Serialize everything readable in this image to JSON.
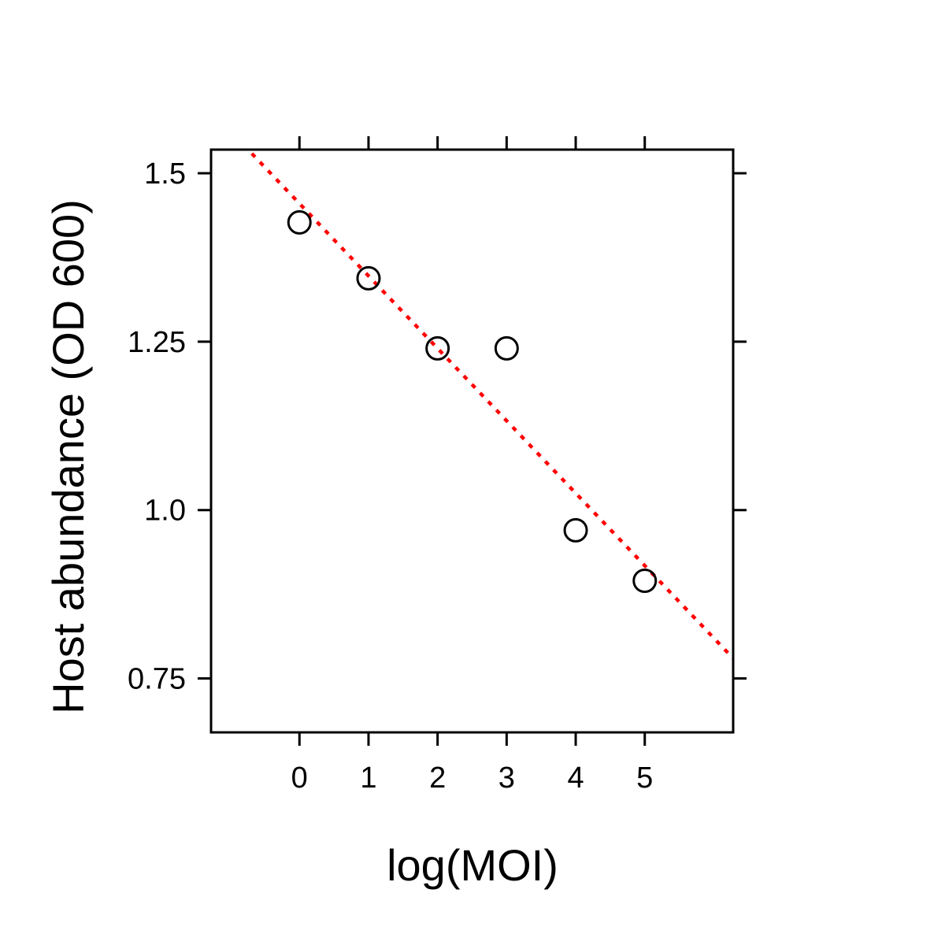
{
  "chart_data": {
    "type": "scatter",
    "xlabel": "log(MOI)",
    "ylabel": "Host abundance (OD 600)",
    "xlim": [
      -1.28,
      6.28
    ],
    "ylim": [
      0.67,
      1.535
    ],
    "x_ticks": [
      0,
      1,
      2,
      3,
      4,
      5
    ],
    "x_tick_labels": [
      "0",
      "1",
      "2",
      "3",
      "4",
      "5"
    ],
    "y_ticks": [
      0.75,
      1.0,
      1.25,
      1.5
    ],
    "y_tick_labels": [
      "0.75",
      "1.0",
      "1.25",
      "1.5"
    ],
    "series": [
      {
        "marker": "open-circle",
        "color": "#000000",
        "points": [
          {
            "x": 0,
            "y": 1.427
          },
          {
            "x": 1,
            "y": 1.344
          },
          {
            "x": 2,
            "y": 1.24
          },
          {
            "x": 3,
            "y": 1.24
          },
          {
            "x": 4,
            "y": 0.97
          },
          {
            "x": 5,
            "y": 0.895
          }
        ]
      }
    ],
    "fit_line": {
      "style": "dotted",
      "color": "#ff0000",
      "intercept": 1.455,
      "slope": -0.1075
    },
    "grid": false,
    "legend": "none",
    "ticks_mirrored": true
  }
}
